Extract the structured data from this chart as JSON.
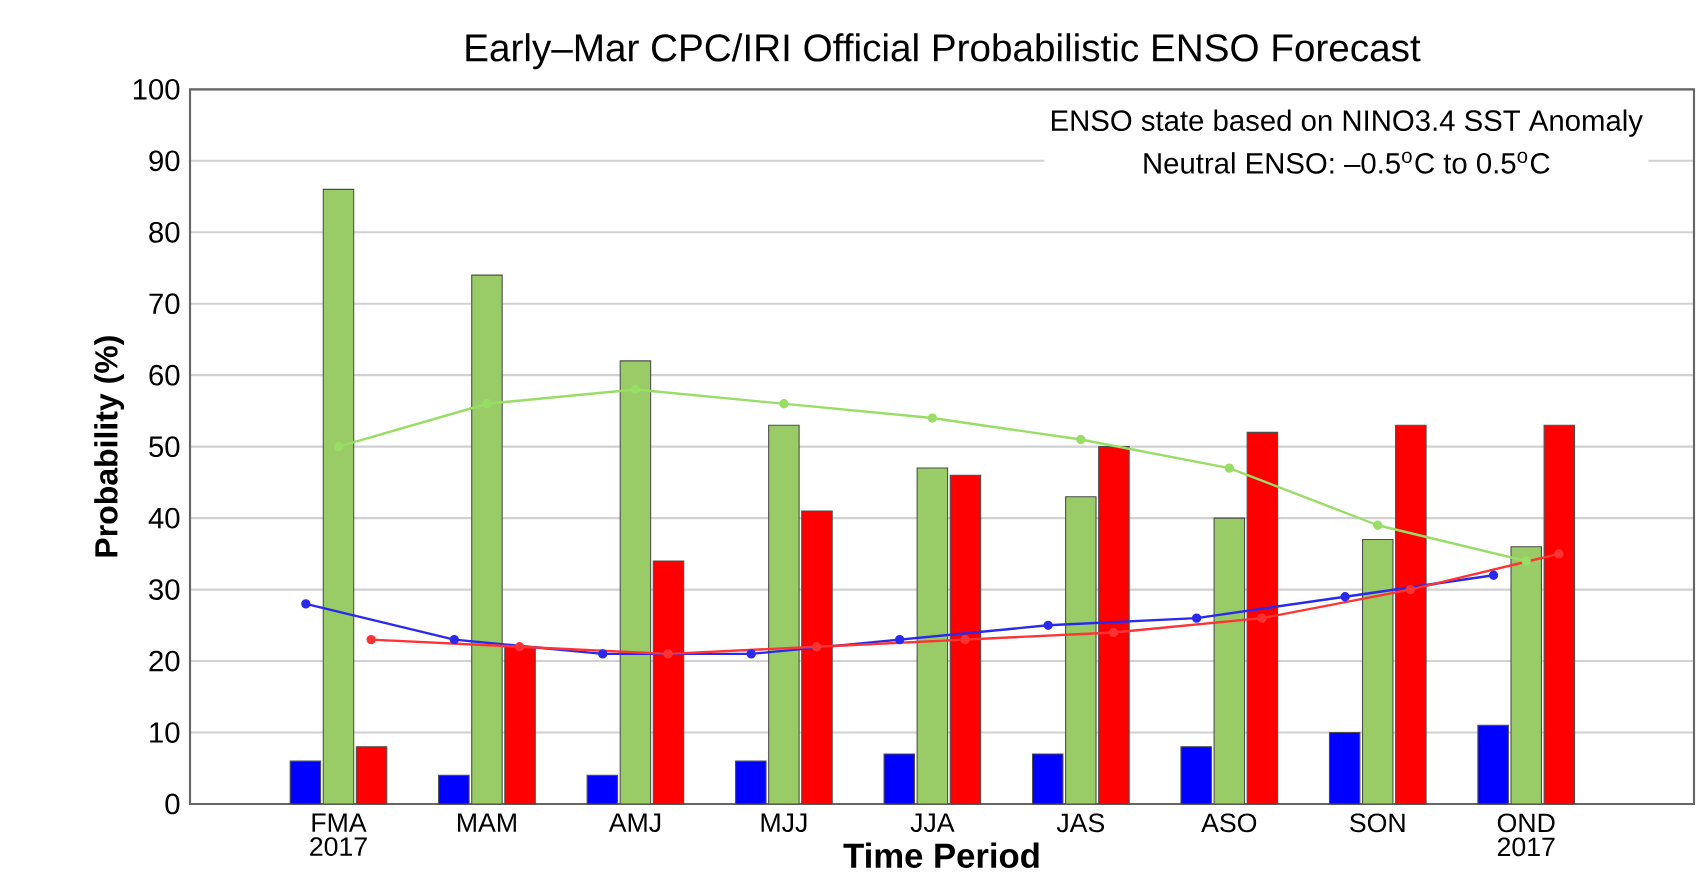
{
  "chart_data": {
    "type": "bar",
    "title": "Early–Mar CPC/IRI Official Probabilistic ENSO Forecast",
    "xlabel": "Time Period",
    "ylabel": "Probability (%)",
    "categories": [
      "FMA 2017",
      "MAM",
      "AMJ",
      "MJJ",
      "JJA",
      "JAS",
      "ASO",
      "SON",
      "OND 2017"
    ],
    "series": [
      {
        "color": "#0000ff",
        "values": [
          6,
          4,
          4,
          6,
          7,
          7,
          8,
          10,
          11
        ]
      },
      {
        "color": "#99cc66",
        "values": [
          86,
          74,
          62,
          53,
          47,
          43,
          40,
          37,
          36
        ]
      },
      {
        "color": "#ff0000",
        "values": [
          8,
          22,
          34,
          41,
          46,
          50,
          52,
          53,
          53
        ]
      },
      {
        "type": "line",
        "color": "#2a2aee",
        "values": [
          28,
          23,
          21,
          21,
          23,
          25,
          26,
          29,
          32
        ]
      },
      {
        "type": "line",
        "color": "#99dd66",
        "values": [
          50,
          56,
          58,
          56,
          54,
          51,
          47,
          39,
          34
        ]
      },
      {
        "type": "line",
        "color": "#ff3333",
        "values": [
          23,
          22,
          21,
          22,
          23,
          24,
          26,
          30,
          35
        ]
      }
    ],
    "ylim": [
      0,
      100
    ],
    "yticks": [
      0,
      10,
      20,
      30,
      40,
      50,
      60,
      70,
      80,
      90,
      100
    ],
    "grid": "y",
    "marker": "circle",
    "annotations": [
      "ENSO state based on NINO3.4 SST Anomaly",
      "Neutral ENSO: –0.5$^{o}$C to 0.5$^{o}$C"
    ]
  }
}
